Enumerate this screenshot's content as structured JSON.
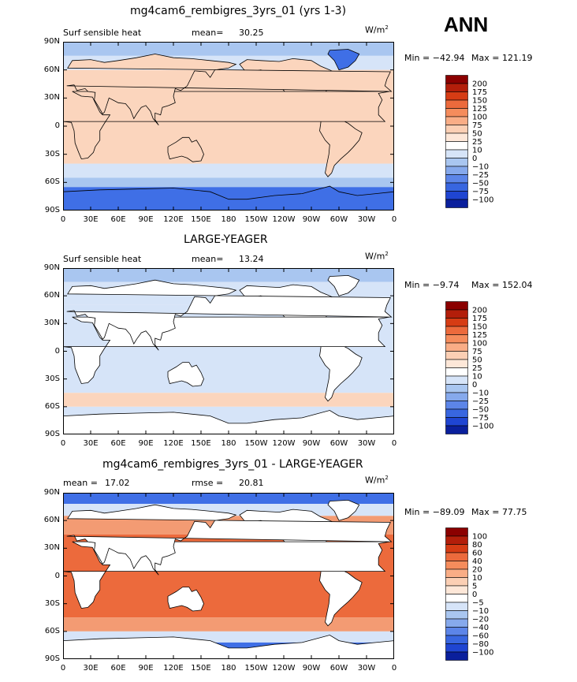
{
  "season": "ANN",
  "units": "W/m",
  "units_exp": "2",
  "colors": {
    "sea_ice_blue": "#3f6fe6",
    "deep_blue": "#1d3fcf",
    "light_blue": "#a9c6f0",
    "pale_blue": "#d6e4f8",
    "peach": "#fbd5bd",
    "salmon": "#f39b73",
    "orange": "#ec6a3c",
    "land": "#ffffff"
  },
  "panels": [
    {
      "title": "mg4cam6_rembigres_3yrs_01 (yrs 1-3)",
      "left_label": "Surf sensible heat",
      "stat_label": "mean=",
      "stat_value": "30.25",
      "stat2_label": "",
      "stat2_value": "",
      "min_text": "Min = −42.94",
      "max_text": "Max = 121.19",
      "colorbar_levels": [
        "200",
        "175",
        "150",
        "125",
        "100",
        "75",
        "50",
        "25",
        "10",
        "0",
        "−10",
        "−25",
        "−50",
        "−75",
        "−100"
      ],
      "colorbar_colors": [
        "#8b0000",
        "#b31e0a",
        "#d63c14",
        "#ec6a3c",
        "#f58c5c",
        "#f9ad86",
        "#fbcfb4",
        "#fde7d8",
        "#ffffff",
        "#d6e4f8",
        "#a9c6f0",
        "#86a9ec",
        "#5c85e8",
        "#3866e0",
        "#1f45d2",
        "#0a1f9c"
      ]
    },
    {
      "title": "LARGE-YEAGER",
      "left_label": "Surf sensible heat",
      "stat_label": "mean=",
      "stat_value": "13.24",
      "stat2_label": "",
      "stat2_value": "",
      "min_text": "Min =  −9.74",
      "max_text": "Max = 152.04",
      "colorbar_levels": [
        "200",
        "175",
        "150",
        "125",
        "100",
        "75",
        "50",
        "25",
        "10",
        "0",
        "−10",
        "−25",
        "−50",
        "−75",
        "−100"
      ],
      "colorbar_colors": [
        "#8b0000",
        "#b31e0a",
        "#d63c14",
        "#ec6a3c",
        "#f58c5c",
        "#f9ad86",
        "#fbcfb4",
        "#fde7d8",
        "#ffffff",
        "#d6e4f8",
        "#a9c6f0",
        "#86a9ec",
        "#5c85e8",
        "#3866e0",
        "#1f45d2",
        "#0a1f9c"
      ]
    },
    {
      "title": "mg4cam6_rembigres_3yrs_01 - LARGE-YEAGER",
      "left_label": "",
      "stat_label": "mean =",
      "stat_value": "17.02",
      "stat2_label": "rmse =",
      "stat2_value": "20.81",
      "min_text": "Min = −89.09",
      "max_text": "Max =  77.75",
      "colorbar_levels": [
        "100",
        "80",
        "60",
        "40",
        "20",
        "10",
        "5",
        "0",
        "−5",
        "−10",
        "−20",
        "−40",
        "−60",
        "−80",
        "−100"
      ],
      "colorbar_colors": [
        "#8b0000",
        "#b31e0a",
        "#d63c14",
        "#ec6a3c",
        "#f58c5c",
        "#f9ad86",
        "#fbcfb4",
        "#fde7d8",
        "#ffffff",
        "#d6e4f8",
        "#a9c6f0",
        "#86a9ec",
        "#5c85e8",
        "#3866e0",
        "#1f45d2",
        "#0a1f9c"
      ]
    }
  ],
  "lat_ticks": [
    "90N",
    "60N",
    "30N",
    "0",
    "30S",
    "60S",
    "90S"
  ],
  "lon_ticks": [
    "0",
    "30E",
    "60E",
    "90E",
    "120E",
    "150E",
    "180",
    "150W",
    "120W",
    "90W",
    "60W",
    "30W",
    "0"
  ]
}
